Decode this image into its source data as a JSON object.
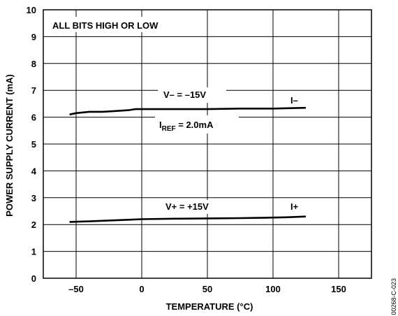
{
  "chart_data": {
    "type": "line",
    "xlabel": "TEMPERATURE (°C)",
    "ylabel": "POWER SUPPLY CURRENT (mA)",
    "xlim": [
      -75,
      175
    ],
    "ylim": [
      0,
      10
    ],
    "xticks": [
      -50,
      0,
      50,
      100,
      150
    ],
    "xtick_labels": [
      "–50",
      "0",
      "50",
      "100",
      "150"
    ],
    "yticks": [
      0,
      1,
      2,
      3,
      4,
      5,
      6,
      7,
      8,
      9,
      10
    ],
    "grid": true,
    "series": [
      {
        "name": "I–",
        "x": [
          -55,
          -50,
          -40,
          -30,
          -20,
          -10,
          -5,
          0,
          10,
          25,
          50,
          75,
          100,
          125
        ],
        "y": [
          6.1,
          6.15,
          6.2,
          6.2,
          6.23,
          6.26,
          6.3,
          6.3,
          6.3,
          6.3,
          6.3,
          6.32,
          6.32,
          6.35
        ]
      },
      {
        "name": "I+",
        "x": [
          -55,
          -40,
          -25,
          -10,
          0,
          25,
          50,
          75,
          90,
          100,
          110,
          125
        ],
        "y": [
          2.1,
          2.12,
          2.15,
          2.18,
          2.2,
          2.22,
          2.23,
          2.24,
          2.25,
          2.26,
          2.27,
          2.3
        ]
      }
    ],
    "annotations": {
      "condition": "ALL BITS HIGH OR LOW",
      "vneg": "V– = –15V",
      "vpos": "V+ = +15V",
      "iref_main": "I",
      "iref_sub": "REF",
      "iref_value": " = 2.0mA",
      "figure_id": "00268-C-023"
    }
  }
}
